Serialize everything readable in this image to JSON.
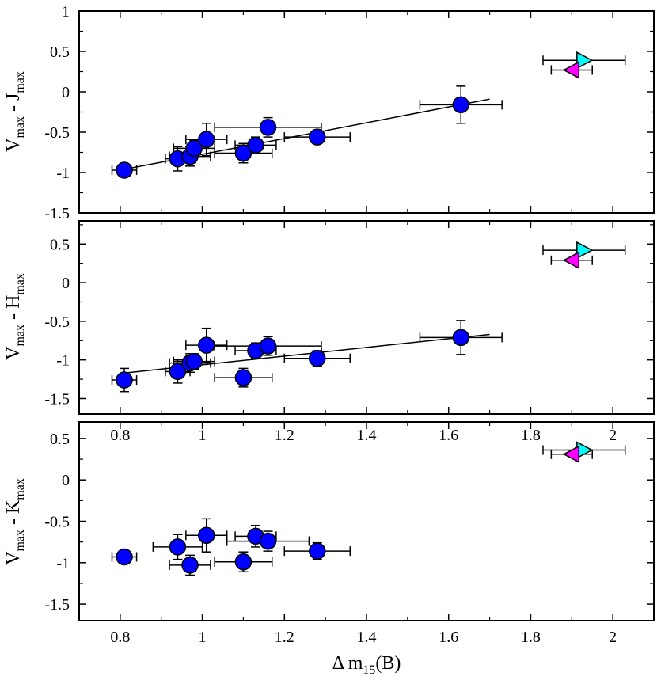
{
  "chart_data": [
    {
      "type": "scatter",
      "panel": "top",
      "ylabel": "V_max - J_max",
      "ylabel_main1": "V",
      "ylabel_sub1": "max",
      "ylabel_main2": " - J",
      "ylabel_sub2": "max",
      "xlim": [
        0.7,
        2.1
      ],
      "ylim": [
        -1.5,
        1.0
      ],
      "xticks": [
        0.8,
        1.0,
        1.2,
        1.4,
        1.6,
        1.8,
        2.0
      ],
      "yticks": [
        -1.5,
        -1.0,
        -0.5,
        0.0,
        0.5,
        1.0
      ],
      "ytick_labels": [
        "-1.5",
        "-1",
        "-0.5",
        "0",
        "0.5",
        "1"
      ],
      "series": [
        {
          "name": "circles",
          "marker": "circle",
          "color": "#0000ff",
          "points": [
            {
              "x": 0.81,
              "y": -0.97,
              "xerr": 0.03,
              "yerr": 0.05
            },
            {
              "x": 0.94,
              "y": -0.83,
              "xerr": 0.03,
              "yerr": 0.15
            },
            {
              "x": 0.97,
              "y": -0.8,
              "xerr": 0.05,
              "yerr": 0.12
            },
            {
              "x": 0.98,
              "y": -0.7,
              "xerr": 0.05,
              "yerr": 0.1
            },
            {
              "x": 1.01,
              "y": -0.59,
              "xerr": 0.05,
              "yerr": 0.2
            },
            {
              "x": 1.1,
              "y": -0.76,
              "xerr": 0.07,
              "yerr": 0.12
            },
            {
              "x": 1.13,
              "y": -0.66,
              "xerr": 0.05,
              "yerr": 0.1
            },
            {
              "x": 1.16,
              "y": -0.44,
              "xerr": 0.13,
              "yerr": 0.12
            },
            {
              "x": 1.28,
              "y": -0.56,
              "xerr": 0.08,
              "yerr": 0.08
            },
            {
              "x": 1.63,
              "y": -0.16,
              "xerr": 0.1,
              "yerr": 0.23
            }
          ]
        },
        {
          "name": "cyan-triangle",
          "marker": "triangle-right",
          "color": "#00ffff",
          "points": [
            {
              "x": 1.93,
              "y": 0.39,
              "xerr": 0.1,
              "yerr": 0.0
            }
          ]
        },
        {
          "name": "magenta-triangle",
          "marker": "triangle-left",
          "color": "#ff00ff",
          "points": [
            {
              "x": 1.9,
              "y": 0.27,
              "xerr": 0.05,
              "yerr": 0.0
            }
          ]
        }
      ],
      "fit_line": {
        "x": [
          0.81,
          1.7
        ],
        "y": [
          -0.96,
          -0.09
        ]
      }
    },
    {
      "type": "scatter",
      "panel": "middle",
      "ylabel": "V_max - H_max",
      "ylabel_main1": "V",
      "ylabel_sub1": "max",
      "ylabel_main2": " - H",
      "ylabel_sub2": "max",
      "xlim": [
        0.7,
        2.1
      ],
      "ylim": [
        -1.7,
        0.8
      ],
      "xticks": [
        0.8,
        1.0,
        1.2,
        1.4,
        1.6,
        1.8,
        2.0
      ],
      "yticks": [
        -1.5,
        -1.0,
        -0.5,
        0.0,
        0.5
      ],
      "ytick_labels": [
        "-1.5",
        "-1",
        "-0.5",
        "0",
        "0.5"
      ],
      "series": [
        {
          "name": "circles",
          "marker": "circle",
          "color": "#0000ff",
          "points": [
            {
              "x": 0.81,
              "y": -1.26,
              "xerr": 0.03,
              "yerr": 0.15
            },
            {
              "x": 0.94,
              "y": -1.15,
              "xerr": 0.03,
              "yerr": 0.15
            },
            {
              "x": 0.97,
              "y": -1.04,
              "xerr": 0.05,
              "yerr": 0.12
            },
            {
              "x": 0.98,
              "y": -1.02,
              "xerr": 0.05,
              "yerr": 0.1
            },
            {
              "x": 1.01,
              "y": -0.81,
              "xerr": 0.05,
              "yerr": 0.22
            },
            {
              "x": 1.1,
              "y": -1.23,
              "xerr": 0.07,
              "yerr": 0.12
            },
            {
              "x": 1.13,
              "y": -0.88,
              "xerr": 0.05,
              "yerr": 0.1
            },
            {
              "x": 1.16,
              "y": -0.82,
              "xerr": 0.13,
              "yerr": 0.12
            },
            {
              "x": 1.28,
              "y": -0.98,
              "xerr": 0.08,
              "yerr": 0.1
            },
            {
              "x": 1.63,
              "y": -0.71,
              "xerr": 0.1,
              "yerr": 0.22
            }
          ]
        },
        {
          "name": "cyan-triangle",
          "marker": "triangle-right",
          "color": "#00ffff",
          "points": [
            {
              "x": 1.93,
              "y": 0.42,
              "xerr": 0.1,
              "yerr": 0.0
            }
          ]
        },
        {
          "name": "magenta-triangle",
          "marker": "triangle-left",
          "color": "#ff00ff",
          "points": [
            {
              "x": 1.9,
              "y": 0.29,
              "xerr": 0.05,
              "yerr": 0.0
            }
          ]
        }
      ],
      "fit_line": {
        "x": [
          0.81,
          1.7
        ],
        "y": [
          -1.17,
          -0.67
        ]
      }
    },
    {
      "type": "scatter",
      "panel": "bottom",
      "ylabel": "V_max - K_max",
      "ylabel_main1": "V",
      "ylabel_sub1": "max",
      "ylabel_main2": " - K",
      "ylabel_sub2": "max",
      "xlabel_main": "Δ m",
      "xlabel_sub": "15",
      "xlabel_tail": "(B)",
      "xlim": [
        0.7,
        2.1
      ],
      "ylim": [
        -1.7,
        0.7
      ],
      "xticks": [
        0.8,
        1.0,
        1.2,
        1.4,
        1.6,
        1.8,
        2.0
      ],
      "xtick_labels": [
        "0.8",
        "1",
        "1.2",
        "1.4",
        "1.6",
        "1.8",
        "2"
      ],
      "yticks": [
        -1.5,
        -1.0,
        -0.5,
        0.0,
        0.5
      ],
      "ytick_labels": [
        "-1.5",
        "-1",
        "-0.5",
        "0",
        "0.5"
      ],
      "top_axis_ghost_labels": [
        "0.8",
        "1",
        "1.2",
        "1.4",
        "1.6",
        "1.8",
        "2"
      ],
      "series": [
        {
          "name": "circles",
          "marker": "circle",
          "color": "#0000ff",
          "points": [
            {
              "x": 0.81,
              "y": -0.93,
              "xerr": 0.03,
              "yerr": 0.07
            },
            {
              "x": 0.94,
              "y": -0.81,
              "xerr": 0.06,
              "yerr": 0.15
            },
            {
              "x": 0.97,
              "y": -1.03,
              "xerr": 0.05,
              "yerr": 0.12
            },
            {
              "x": 1.01,
              "y": -0.67,
              "xerr": 0.05,
              "yerr": 0.2
            },
            {
              "x": 1.1,
              "y": -0.99,
              "xerr": 0.07,
              "yerr": 0.12
            },
            {
              "x": 1.13,
              "y": -0.68,
              "xerr": 0.05,
              "yerr": 0.13
            },
            {
              "x": 1.16,
              "y": -0.74,
              "xerr": 0.1,
              "yerr": 0.12
            },
            {
              "x": 1.28,
              "y": -0.86,
              "xerr": 0.08,
              "yerr": 0.1
            }
          ]
        },
        {
          "name": "cyan-triangle",
          "marker": "triangle-right",
          "color": "#00ffff",
          "points": [
            {
              "x": 1.93,
              "y": 0.36,
              "xerr": 0.1,
              "yerr": 0.0
            }
          ]
        },
        {
          "name": "magenta-triangle",
          "marker": "triangle-left",
          "color": "#ff00ff",
          "points": [
            {
              "x": 1.9,
              "y": 0.31,
              "xerr": 0.05,
              "yerr": 0.0
            }
          ]
        }
      ]
    }
  ]
}
